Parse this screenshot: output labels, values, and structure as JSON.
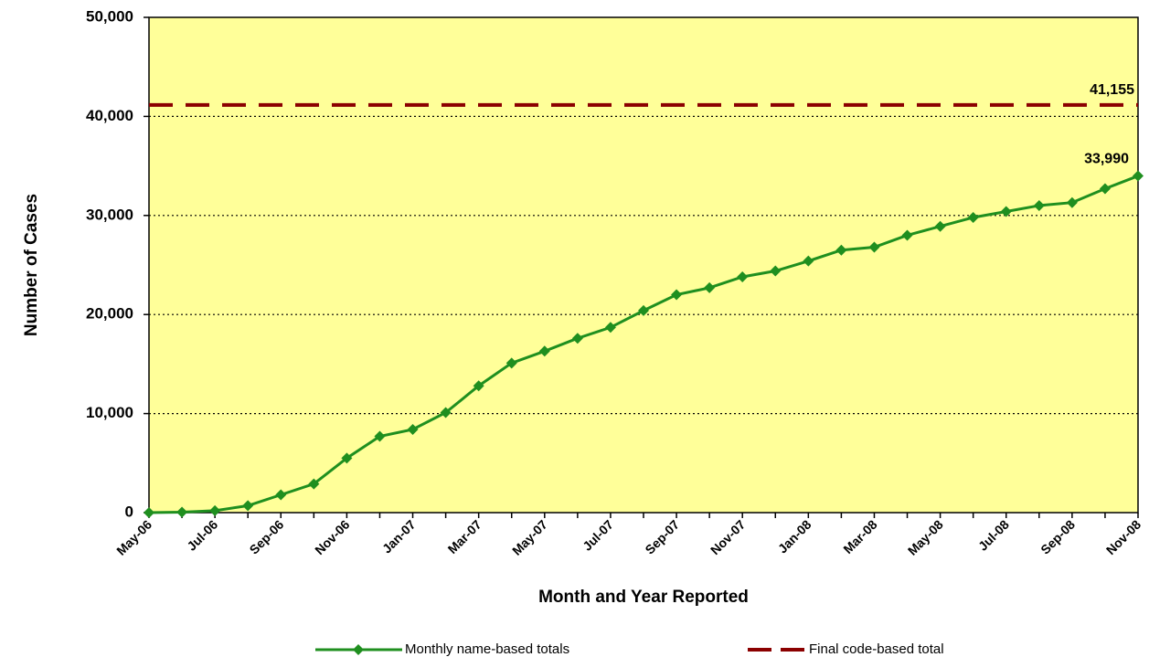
{
  "chart_data": {
    "type": "line",
    "x_label": "Month and Year Reported",
    "y_label": "Number of Cases",
    "categories": [
      "May-06",
      null,
      "Jul-06",
      null,
      "Sep-06",
      null,
      "Nov-06",
      null,
      "Jan-07",
      null,
      "Mar-07",
      null,
      "May-07",
      null,
      "Jul-07",
      null,
      "Sep-07",
      null,
      "Nov-07",
      null,
      "Jan-08",
      null,
      "Mar-08",
      null,
      "May-08",
      null,
      "Jul-08",
      null,
      "Sep-08",
      null,
      "Nov-08"
    ],
    "series": [
      {
        "name": "Monthly name-based totals",
        "color": "#1f8f1f",
        "marker": "diamond",
        "values": [
          0,
          50,
          200,
          700,
          1800,
          2900,
          5500,
          7700,
          8400,
          10100,
          12800,
          15100,
          16300,
          17600,
          18700,
          20400,
          22000,
          22700,
          23800,
          24400,
          25400,
          26500,
          26800,
          28000,
          28900,
          29800,
          30400,
          31000,
          31300,
          32700,
          33990
        ],
        "value_labels": [
          null,
          null,
          null,
          null,
          null,
          null,
          null,
          null,
          null,
          null,
          null,
          null,
          null,
          null,
          null,
          null,
          null,
          null,
          null,
          null,
          null,
          null,
          null,
          null,
          null,
          null,
          null,
          null,
          null,
          null,
          "33,990"
        ]
      },
      {
        "name": "Final code-based total",
        "color": "#8b0000",
        "dashed": true,
        "value": 41155,
        "value_label": "41,155"
      }
    ],
    "ylim": [
      0,
      50000
    ],
    "yticks": [
      0,
      {
        "value": 10000,
        "label": "10,000"
      },
      {
        "value": 20000,
        "label": "20,000"
      },
      {
        "value": 30000,
        "label": "30,000"
      },
      {
        "value": 40000,
        "label": "40,000"
      },
      {
        "value": 50000,
        "label": "50,000"
      }
    ],
    "grid": true,
    "plot_background": "#ffff99",
    "legend": "bottom"
  }
}
